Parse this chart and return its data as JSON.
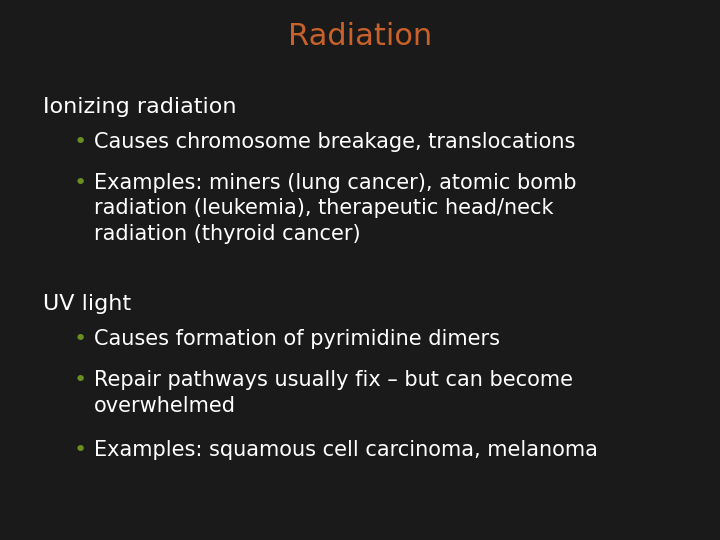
{
  "title": "Radiation",
  "title_color": "#C8612A",
  "title_fontsize": 22,
  "background_color": "#1A1A1A",
  "text_color": "#FFFFFF",
  "bullet_color": "#6B8E23",
  "section1_header": "Ionizing radiation",
  "section2_header": "UV light",
  "section1_bullets": [
    "Causes chromosome breakage, translocations",
    "Examples: miners (lung cancer), atomic bomb\nradiation (leukemia), therapeutic head/neck\nradiation (thyroid cancer)"
  ],
  "section2_bullets": [
    "Causes formation of pyrimidine dimers",
    "Repair pathways usually fix – but can become\noverwhelmed",
    "Examples: squamous cell carcinoma, melanoma"
  ],
  "header_fontsize": 16,
  "bullet_fontsize": 15,
  "figsize": [
    7.2,
    5.4
  ],
  "dpi": 100
}
